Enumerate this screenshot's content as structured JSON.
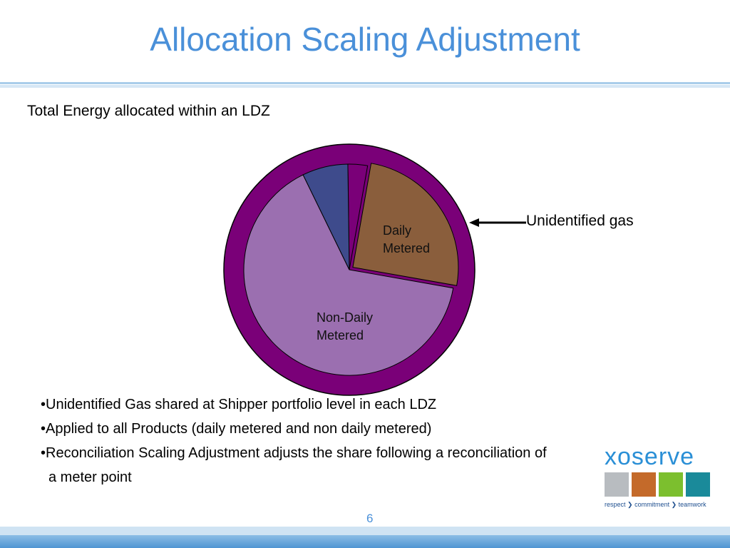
{
  "header": {
    "title": "Allocation Scaling Adjustment"
  },
  "subtitle": "Total Energy allocated within an LDZ",
  "chart_data": {
    "type": "pie",
    "categories": [
      null,
      null,
      "Daily Metered",
      "Non-Daily Metered"
    ],
    "values": [
      7,
      3,
      25,
      65
    ],
    "colors": [
      "#3e4b8c",
      "#7a0078",
      "#8a5e3c",
      "#9b6fb0"
    ],
    "annotation": "Unidentified gas"
  },
  "bullets": [
    "Unidentified Gas shared at Shipper portfolio level in each LDZ",
    "Applied to all Products (daily metered and non daily metered)",
    "Reconciliation Scaling Adjustment adjusts the share following a reconciliation of a meter point"
  ],
  "logo": {
    "name": "xoserve",
    "tagline": [
      "respect",
      "commitment",
      "teamwork"
    ]
  },
  "page_number": "6"
}
